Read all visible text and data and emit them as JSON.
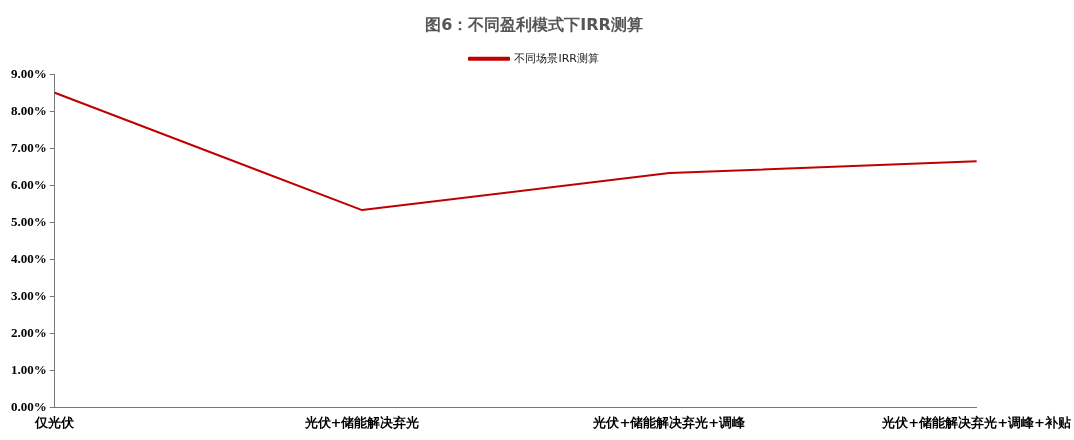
{
  "chart_data": {
    "type": "line",
    "title": "图6：不同盈利模式下IRR测算",
    "categories": [
      "仅光伏",
      "光伏+储能解决弃光",
      "光伏+储能解决弃光+调峰",
      "光伏+储能解决弃光+调峰+补贴"
    ],
    "series": [
      {
        "name": "不同场景IRR测算",
        "color": "#c00000",
        "values": [
          8.5,
          5.33,
          6.33,
          6.65
        ]
      }
    ],
    "ylim": [
      0,
      9
    ],
    "yticks": [
      {
        "value": 0,
        "label": "0.00%"
      },
      {
        "value": 1,
        "label": "1.00%"
      },
      {
        "value": 2,
        "label": "2.00%"
      },
      {
        "value": 3,
        "label": "3.00%"
      },
      {
        "value": 4,
        "label": "4.00%"
      },
      {
        "value": 5,
        "label": "5.00%"
      },
      {
        "value": 6,
        "label": "6.00%"
      },
      {
        "value": 7,
        "label": "7.00%"
      },
      {
        "value": 8,
        "label": "8.00%"
      },
      {
        "value": 9,
        "label": "9.00%"
      }
    ],
    "grid": false,
    "legend": "top",
    "marker": "none",
    "line_style": "solid"
  }
}
